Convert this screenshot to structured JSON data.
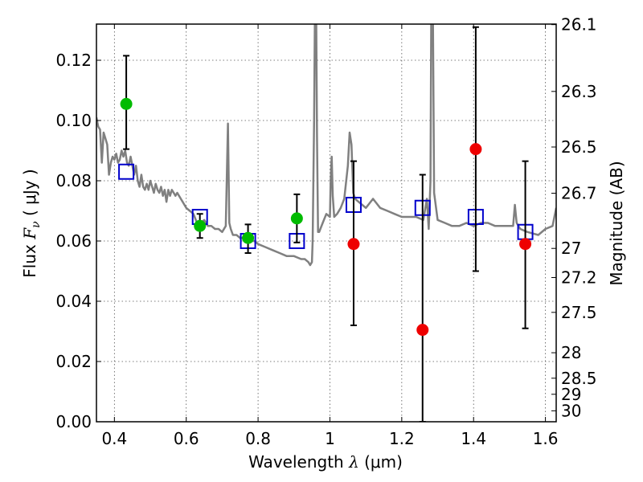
{
  "chart_data": {
    "type": "scatter",
    "xlabel": {
      "prefix": "Wavelength  ",
      "symbol": "λ",
      "unit": " (μm)"
    },
    "ylabel": {
      "prefix": "Flux  ",
      "symbol": "F",
      "subscript": "ν",
      "unit": "  ( μJy )"
    },
    "y2label": "Magnitude (AB)",
    "xlim": [
      0.35,
      1.63
    ],
    "ylim": [
      0.0,
      0.132
    ],
    "grid": true,
    "xticks": [
      0.4,
      0.6,
      0.8,
      1.0,
      1.2,
      1.4,
      1.6
    ],
    "xtick_labels": [
      "0.4",
      "0.6",
      "0.8",
      "1",
      "1.2",
      "1.4",
      "1.6"
    ],
    "yticks": [
      0.0,
      0.02,
      0.04,
      0.06,
      0.08,
      0.1,
      0.12
    ],
    "ytick_labels": [
      "0.00",
      "0.02",
      "0.04",
      "0.06",
      "0.08",
      "0.10",
      "0.12"
    ],
    "mag_ticks": [
      26.1,
      26.3,
      26.5,
      26.7,
      27,
      27.2,
      27.5,
      28,
      28.5,
      29,
      30
    ],
    "mag_tick_labels": [
      "26.1",
      "26.3",
      "26.5",
      "26.7",
      "27",
      "27.2",
      "27.5",
      "28",
      "28.5",
      "29",
      "30"
    ],
    "series": [
      {
        "kind": "line",
        "color": "#808080",
        "x": [
          0.35,
          0.355,
          0.36,
          0.365,
          0.37,
          0.375,
          0.38,
          0.385,
          0.39,
          0.395,
          0.4,
          0.405,
          0.41,
          0.415,
          0.42,
          0.425,
          0.43,
          0.435,
          0.44,
          0.445,
          0.45,
          0.455,
          0.46,
          0.465,
          0.47,
          0.475,
          0.48,
          0.485,
          0.49,
          0.495,
          0.5,
          0.505,
          0.51,
          0.515,
          0.52,
          0.525,
          0.53,
          0.535,
          0.54,
          0.545,
          0.55,
          0.555,
          0.56,
          0.565,
          0.57,
          0.575,
          0.58,
          0.585,
          0.59,
          0.6,
          0.61,
          0.62,
          0.63,
          0.64,
          0.65,
          0.66,
          0.67,
          0.68,
          0.69,
          0.7,
          0.71,
          0.716,
          0.72,
          0.724,
          0.73,
          0.74,
          0.75,
          0.76,
          0.77,
          0.78,
          0.79,
          0.8,
          0.82,
          0.84,
          0.86,
          0.88,
          0.9,
          0.92,
          0.93,
          0.94,
          0.945,
          0.95,
          0.952,
          0.956,
          0.958,
          0.96,
          0.962,
          0.964,
          0.967,
          0.97,
          0.98,
          0.99,
          1.0,
          1.002,
          1.005,
          1.008,
          1.012,
          1.02,
          1.03,
          1.04,
          1.05,
          1.055,
          1.06,
          1.065,
          1.07,
          1.08,
          1.09,
          1.1,
          1.12,
          1.14,
          1.16,
          1.18,
          1.2,
          1.22,
          1.24,
          1.26,
          1.27,
          1.275,
          1.28,
          1.282,
          1.284,
          1.287,
          1.29,
          1.3,
          1.32,
          1.34,
          1.36,
          1.38,
          1.4,
          1.42,
          1.44,
          1.46,
          1.48,
          1.5,
          1.51,
          1.515,
          1.52,
          1.53,
          1.55,
          1.58,
          1.6,
          1.62,
          1.63
        ],
        "y": [
          0.101,
          0.098,
          0.097,
          0.086,
          0.096,
          0.094,
          0.092,
          0.082,
          0.086,
          0.088,
          0.087,
          0.089,
          0.086,
          0.087,
          0.09,
          0.088,
          0.09,
          0.086,
          0.085,
          0.088,
          0.085,
          0.082,
          0.085,
          0.08,
          0.078,
          0.082,
          0.078,
          0.077,
          0.079,
          0.077,
          0.08,
          0.078,
          0.076,
          0.079,
          0.077,
          0.076,
          0.078,
          0.075,
          0.077,
          0.073,
          0.077,
          0.075,
          0.077,
          0.076,
          0.075,
          0.076,
          0.075,
          0.074,
          0.073,
          0.071,
          0.07,
          0.069,
          0.066,
          0.066,
          0.067,
          0.065,
          0.065,
          0.064,
          0.064,
          0.063,
          0.065,
          0.099,
          0.066,
          0.064,
          0.062,
          0.062,
          0.061,
          0.061,
          0.061,
          0.06,
          0.06,
          0.059,
          0.058,
          0.057,
          0.056,
          0.055,
          0.055,
          0.054,
          0.054,
          0.053,
          0.052,
          0.053,
          0.06,
          0.1,
          0.132,
          0.132,
          0.132,
          0.095,
          0.063,
          0.063,
          0.066,
          0.069,
          0.068,
          0.08,
          0.088,
          0.075,
          0.068,
          0.069,
          0.071,
          0.074,
          0.085,
          0.096,
          0.092,
          0.076,
          0.074,
          0.073,
          0.072,
          0.071,
          0.074,
          0.071,
          0.07,
          0.069,
          0.068,
          0.068,
          0.068,
          0.067,
          0.074,
          0.064,
          0.08,
          0.132,
          0.132,
          0.132,
          0.076,
          0.067,
          0.066,
          0.065,
          0.065,
          0.066,
          0.065,
          0.066,
          0.066,
          0.065,
          0.065,
          0.065,
          0.065,
          0.072,
          0.066,
          0.064,
          0.063,
          0.062,
          0.064,
          0.065,
          0.071
        ]
      },
      {
        "kind": "open_square",
        "color": "#0000cc",
        "x": [
          0.433,
          0.638,
          0.772,
          0.908,
          1.066,
          1.258,
          1.406,
          1.544
        ],
        "y": [
          0.083,
          0.068,
          0.06,
          0.06,
          0.072,
          0.071,
          0.068,
          0.063
        ]
      },
      {
        "kind": "point_with_errorbar",
        "color": "#00bb00",
        "x": [
          0.433,
          0.638,
          0.772,
          0.908
        ],
        "y": [
          0.1055,
          0.065,
          0.061,
          0.0675
        ],
        "yerr_low": [
          0.0905,
          0.061,
          0.056,
          0.0595
        ],
        "yerr_high": [
          0.1215,
          0.069,
          0.0655,
          0.0755
        ]
      },
      {
        "kind": "point_with_errorbar",
        "color": "#ee0000",
        "x": [
          1.066,
          1.258,
          1.406,
          1.544
        ],
        "y": [
          0.059,
          0.0305,
          0.0905,
          0.059
        ],
        "yerr_low": [
          0.032,
          0.0,
          0.05,
          0.031
        ],
        "yerr_high": [
          0.0865,
          0.082,
          0.131,
          0.0865
        ]
      }
    ]
  }
}
